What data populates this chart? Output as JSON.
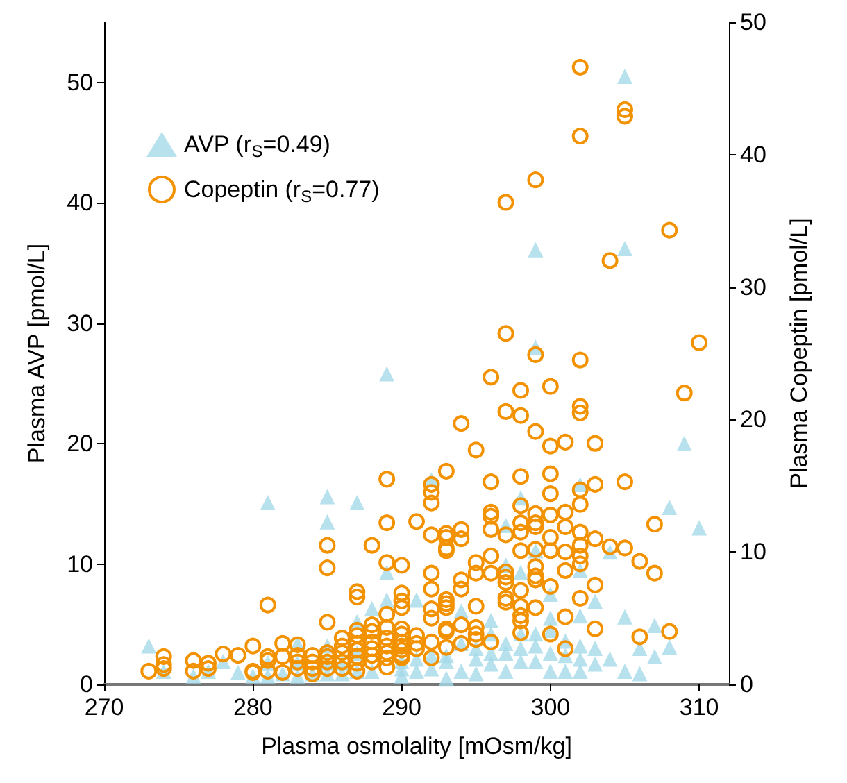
{
  "chart_data": {
    "type": "scatter",
    "xlabel": "Plasma osmolality [mOsm/kg]",
    "ylabel": "Plasma AVP [pmol/L]",
    "y2label": "Plasma Copeptin [pmol/L]",
    "xlim": [
      270,
      312
    ],
    "xticks": [
      270,
      280,
      290,
      300,
      310
    ],
    "ylim": [
      0,
      55
    ],
    "yticks": [
      0,
      10,
      20,
      30,
      40,
      50
    ],
    "y2lim": [
      0,
      50
    ],
    "y2ticks": [
      0,
      10,
      20,
      30,
      40,
      50
    ],
    "grid": false,
    "legend": "top left",
    "series": [
      {
        "name": "AVP (r$_{S}$=0.49)",
        "color": "#a4d9e8",
        "marker": "triangle",
        "x": [
          305,
          299,
          305,
          299,
          289,
          309,
          308,
          310,
          281,
          285,
          285,
          287,
          288,
          289,
          289,
          273,
          274,
          276,
          277,
          278,
          279,
          280,
          281,
          281,
          282,
          283,
          283,
          283,
          284,
          285,
          285,
          285,
          286,
          286,
          287,
          287,
          287,
          288,
          292,
          298,
          302,
          297,
          299,
          304,
          302,
          300,
          298,
          297,
          291,
          294,
          296,
          300,
          302,
          303,
          305,
          307,
          290,
          290,
          290,
          291,
          291,
          292,
          292,
          293,
          293,
          293,
          294,
          294,
          295,
          295,
          295,
          296,
          296,
          296,
          297,
          297,
          297,
          298,
          298,
          298,
          299,
          299,
          299,
          300,
          300,
          300,
          301,
          301,
          301,
          302,
          302,
          302,
          303,
          303,
          304,
          305,
          306,
          306,
          307,
          308
        ],
        "values": [
          50.5,
          36.1,
          36.2,
          28.0,
          25.8,
          20.0,
          14.7,
          13.0,
          15.1,
          15.6,
          13.5,
          15.1,
          6.3,
          7.0,
          9.3,
          3.2,
          1.1,
          0.7,
          1.1,
          1.9,
          1.0,
          0.7,
          1.8,
          0.7,
          0.9,
          3.4,
          1.8,
          0.7,
          0.9,
          3.2,
          1.8,
          0.9,
          1.8,
          0.9,
          5.2,
          2.6,
          1.1,
          1.1,
          17.0,
          15.5,
          16.6,
          13.2,
          11.1,
          11.0,
          9.5,
          7.5,
          9.3,
          9.9,
          7.0,
          6.1,
          5.3,
          5.5,
          5.7,
          6.9,
          5.6,
          4.9,
          0.7,
          1.3,
          1.9,
          1.1,
          2.1,
          1.3,
          2.4,
          0.5,
          1.9,
          2.4,
          1.1,
          3.4,
          0.9,
          2.1,
          3.0,
          1.7,
          2.6,
          4.2,
          1.1,
          2.6,
          3.4,
          1.9,
          3.0,
          4.2,
          1.9,
          3.2,
          4.2,
          1.1,
          2.6,
          4.5,
          1.1,
          2.4,
          3.6,
          1.1,
          2.1,
          3.2,
          1.7,
          3.0,
          2.1,
          1.1,
          0.9,
          3.0,
          2.3,
          3.1
        ]
      },
      {
        "name": "Copeptin (r$_{S}$=0.77)",
        "color": "#f39200",
        "marker": "circle",
        "axis": "y2",
        "x": [
          302,
          305,
          305,
          302,
          299,
          297,
          308,
          304,
          297,
          310,
          299,
          302,
          296,
          298,
          300,
          309,
          297,
          298,
          302,
          302,
          294,
          299,
          295,
          300,
          301,
          303,
          289,
          293,
          292,
          292,
          292,
          296,
          298,
          300,
          300,
          302,
          302,
          303,
          305,
          298,
          289,
          291,
          292,
          293,
          293,
          293,
          293,
          294,
          294,
          296,
          296,
          296,
          297,
          298,
          298,
          299,
          299,
          299,
          300,
          300,
          301,
          301,
          302,
          303,
          304,
          305,
          307,
          289,
          290,
          292,
          292,
          294,
          294,
          295,
          295,
          296,
          296,
          297,
          297,
          297,
          298,
          298,
          299,
          299,
          299,
          299,
          300,
          300,
          301,
          301,
          302,
          302,
          302,
          303,
          306,
          307,
          290,
          290,
          290,
          289,
          292,
          292,
          293,
          293,
          293,
          295,
          297,
          297,
          298,
          298,
          298,
          299,
          302,
          301,
          289,
          290,
          290,
          290,
          290,
          290,
          290,
          290,
          289,
          289,
          289,
          289,
          289,
          291,
          291,
          291,
          292,
          292,
          293,
          293,
          293,
          294,
          294,
          295,
          295,
          295,
          296,
          298,
          300,
          301,
          303,
          306,
          308,
          273,
          274,
          274,
          274,
          276,
          276,
          277,
          277,
          278,
          279,
          280,
          280,
          280,
          281,
          281,
          281,
          281,
          282,
          282,
          282,
          283,
          283,
          283,
          283,
          284,
          284,
          284,
          284,
          285,
          285,
          285,
          285,
          285,
          285,
          285,
          286,
          286,
          286,
          286,
          286,
          287,
          287,
          287,
          287,
          287,
          287,
          287,
          287,
          287,
          288,
          288,
          288,
          288,
          288,
          288,
          288
        ],
        "values": [
          46.6,
          43.4,
          42.9,
          41.4,
          38.1,
          36.4,
          34.3,
          32.0,
          26.5,
          25.8,
          24.9,
          24.5,
          23.2,
          22.2,
          22.5,
          22.0,
          20.6,
          20.3,
          21.0,
          20.5,
          19.7,
          19.1,
          17.7,
          18.0,
          18.3,
          18.2,
          15.5,
          16.1,
          15.1,
          14.5,
          13.7,
          15.3,
          15.7,
          15.9,
          14.4,
          14.7,
          13.6,
          15.1,
          15.3,
          13.5,
          12.2,
          12.3,
          11.3,
          11.4,
          11.1,
          10.3,
          10.1,
          11.7,
          11.0,
          13.0,
          12.7,
          11.7,
          11.3,
          12.2,
          11.5,
          12.9,
          12.2,
          11.9,
          12.8,
          11.1,
          13.0,
          11.9,
          11.5,
          11.0,
          10.4,
          10.3,
          12.1,
          9.2,
          9.0,
          8.4,
          7.2,
          7.9,
          7.2,
          9.2,
          8.4,
          9.7,
          8.4,
          8.5,
          8.1,
          7.7,
          10.1,
          7.1,
          10.2,
          8.9,
          8.2,
          7.9,
          10.1,
          7.4,
          10.0,
          8.6,
          10.5,
          9.7,
          9.1,
          7.5,
          9.3,
          8.4,
          6.9,
          6.3,
          5.8,
          5.3,
          5.7,
          5.0,
          6.4,
          6.1,
          5.8,
          5.9,
          6.5,
          6.2,
          5.9,
          5.2,
          4.8,
          5.8,
          6.5,
          5.1,
          4.3,
          4.2,
          3.8,
          3.2,
          2.9,
          2.6,
          2.2,
          2.0,
          3.5,
          2.9,
          2.4,
          2.0,
          1.3,
          3.7,
          3.1,
          2.7,
          3.2,
          2.0,
          4.2,
          4.0,
          2.8,
          4.5,
          3.1,
          4.3,
          3.8,
          3.4,
          3.2,
          3.9,
          3.8,
          2.7,
          4.2,
          3.6,
          4.0,
          1.0,
          2.1,
          1.5,
          1.2,
          1.8,
          1.0,
          1.6,
          1.2,
          2.3,
          2.2,
          2.9,
          1.0,
          0.9,
          6.0,
          2.1,
          1.8,
          1.0,
          3.1,
          2.1,
          0.9,
          3.0,
          2.2,
          1.7,
          1.2,
          2.2,
          1.7,
          1.2,
          0.8,
          10.5,
          8.8,
          4.7,
          2.4,
          2.1,
          1.7,
          1.2,
          3.5,
          2.9,
          2.4,
          1.7,
          1.2,
          7.0,
          6.6,
          4.1,
          3.7,
          3.1,
          2.6,
          2.1,
          1.6,
          1.0,
          10.5,
          4.5,
          4.0,
          3.2,
          2.7,
          2.2,
          1.7
        ]
      }
    ]
  }
}
